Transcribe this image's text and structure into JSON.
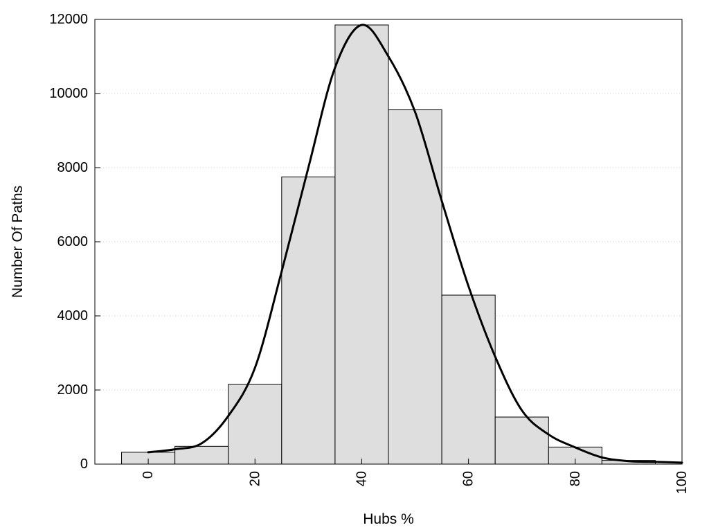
{
  "chart_data": {
    "type": "bar",
    "xlabel": "Hubs %",
    "ylabel": "Number Of Paths",
    "xlim": [
      -10,
      100
    ],
    "ylim": [
      0,
      12000
    ],
    "xticks": [
      0,
      20,
      40,
      60,
      80,
      100
    ],
    "yticks": [
      0,
      2000,
      4000,
      6000,
      8000,
      10000,
      12000
    ],
    "grid": true,
    "bin_width": 10,
    "bars": [
      {
        "x": 0,
        "value": 320
      },
      {
        "x": 10,
        "value": 480
      },
      {
        "x": 20,
        "value": 2150
      },
      {
        "x": 30,
        "value": 7750
      },
      {
        "x": 40,
        "value": 11850
      },
      {
        "x": 50,
        "value": 9560
      },
      {
        "x": 60,
        "value": 4560
      },
      {
        "x": 70,
        "value": 1270
      },
      {
        "x": 80,
        "value": 460
      },
      {
        "x": 90,
        "value": 100
      }
    ],
    "curve": {
      "x": [
        0,
        5,
        10,
        15,
        20,
        25,
        30,
        35,
        40,
        45,
        50,
        55,
        60,
        65,
        70,
        75,
        80,
        85,
        90,
        95,
        100
      ],
      "y": [
        320,
        400,
        560,
        1300,
        2600,
        5200,
        8000,
        10700,
        11850,
        11000,
        9500,
        7100,
        4800,
        2900,
        1450,
        800,
        450,
        180,
        80,
        60,
        40
      ]
    }
  }
}
